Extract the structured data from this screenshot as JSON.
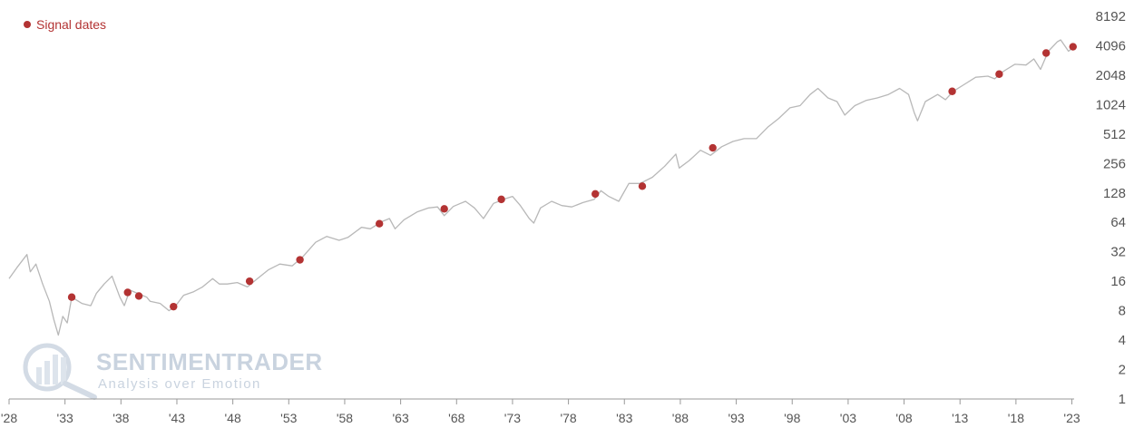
{
  "legend": {
    "label": "Signal dates",
    "color": "#b33333"
  },
  "watermark": {
    "name": "SENTIMENTRADER",
    "tagline": "Analysis over Emotion"
  },
  "chart_data": {
    "type": "line",
    "title": "",
    "xlabel": "",
    "ylabel": "",
    "yscale": "log2",
    "ylim": [
      1,
      8192
    ],
    "xlim": [
      1928,
      2023.2
    ],
    "grid": false,
    "legend_position": "top-left",
    "ytick_labels": [
      "1",
      "2",
      "4",
      "8",
      "16",
      "32",
      "64",
      "128",
      "256",
      "512",
      "1024",
      "2048",
      "4096",
      "8192"
    ],
    "xtick_labels": [
      {
        "year": 1928,
        "label": "'28"
      },
      {
        "year": 1933,
        "label": "'33"
      },
      {
        "year": 1938,
        "label": "'38"
      },
      {
        "year": 1943,
        "label": "'43"
      },
      {
        "year": 1948,
        "label": "'48"
      },
      {
        "year": 1953,
        "label": "'53"
      },
      {
        "year": 1958,
        "label": "'58"
      },
      {
        "year": 1963,
        "label": "'63"
      },
      {
        "year": 1968,
        "label": "'68"
      },
      {
        "year": 1973,
        "label": "'73"
      },
      {
        "year": 1978,
        "label": "'78"
      },
      {
        "year": 1983,
        "label": "'83"
      },
      {
        "year": 1988,
        "label": "'88"
      },
      {
        "year": 1993,
        "label": "'93"
      },
      {
        "year": 1998,
        "label": "'98"
      },
      {
        "year": 2003,
        "label": "'03"
      },
      {
        "year": 2008,
        "label": "'08"
      },
      {
        "year": 2013,
        "label": "'13"
      },
      {
        "year": 2018,
        "label": "'18"
      },
      {
        "year": 2023,
        "label": "'23"
      }
    ],
    "series": [
      {
        "color": "#b8b8b8",
        "points": [
          [
            1928.0,
            17
          ],
          [
            1928.7,
            22
          ],
          [
            1929.6,
            30
          ],
          [
            1929.9,
            20
          ],
          [
            1930.4,
            24
          ],
          [
            1931.0,
            15
          ],
          [
            1931.6,
            10
          ],
          [
            1932.0,
            6.5
          ],
          [
            1932.4,
            4.5
          ],
          [
            1932.8,
            7
          ],
          [
            1933.2,
            6
          ],
          [
            1933.6,
            11
          ],
          [
            1934.5,
            9.5
          ],
          [
            1935.3,
            9
          ],
          [
            1935.8,
            12
          ],
          [
            1936.5,
            15
          ],
          [
            1937.2,
            18
          ],
          [
            1937.9,
            11
          ],
          [
            1938.3,
            9
          ],
          [
            1938.8,
            13
          ],
          [
            1939.5,
            12
          ],
          [
            1940.3,
            11
          ],
          [
            1940.6,
            10
          ],
          [
            1941.5,
            9.5
          ],
          [
            1942.3,
            8
          ],
          [
            1942.9,
            9
          ],
          [
            1943.6,
            11.5
          ],
          [
            1944.5,
            12.5
          ],
          [
            1945.3,
            14
          ],
          [
            1946.2,
            17
          ],
          [
            1946.8,
            15
          ],
          [
            1947.5,
            15
          ],
          [
            1948.4,
            15.5
          ],
          [
            1949.3,
            14
          ],
          [
            1950.2,
            17
          ],
          [
            1951.2,
            21
          ],
          [
            1952.2,
            24
          ],
          [
            1953.3,
            23
          ],
          [
            1954.2,
            28
          ],
          [
            1955.4,
            40
          ],
          [
            1956.4,
            46
          ],
          [
            1957.5,
            42
          ],
          [
            1958.3,
            45
          ],
          [
            1959.5,
            57
          ],
          [
            1960.3,
            55
          ],
          [
            1961.3,
            65
          ],
          [
            1962.0,
            70
          ],
          [
            1962.5,
            55
          ],
          [
            1963.3,
            68
          ],
          [
            1964.5,
            82
          ],
          [
            1965.5,
            90
          ],
          [
            1966.3,
            92
          ],
          [
            1966.9,
            75
          ],
          [
            1967.7,
            93
          ],
          [
            1968.8,
            105
          ],
          [
            1969.6,
            90
          ],
          [
            1970.4,
            70
          ],
          [
            1971.3,
            100
          ],
          [
            1972.4,
            112
          ],
          [
            1973.0,
            118
          ],
          [
            1973.7,
            95
          ],
          [
            1974.5,
            70
          ],
          [
            1974.9,
            63
          ],
          [
            1975.5,
            90
          ],
          [
            1976.5,
            105
          ],
          [
            1977.4,
            95
          ],
          [
            1978.3,
            92
          ],
          [
            1979.3,
            102
          ],
          [
            1980.3,
            110
          ],
          [
            1980.9,
            135
          ],
          [
            1981.6,
            118
          ],
          [
            1982.5,
            105
          ],
          [
            1983.4,
            160
          ],
          [
            1984.4,
            160
          ],
          [
            1985.5,
            185
          ],
          [
            1986.6,
            240
          ],
          [
            1987.6,
            320
          ],
          [
            1987.9,
            230
          ],
          [
            1988.8,
            275
          ],
          [
            1989.8,
            350
          ],
          [
            1990.7,
            310
          ],
          [
            1991.7,
            380
          ],
          [
            1992.7,
            430
          ],
          [
            1993.7,
            460
          ],
          [
            1994.8,
            460
          ],
          [
            1995.8,
            600
          ],
          [
            1996.8,
            740
          ],
          [
            1997.8,
            950
          ],
          [
            1998.7,
            1000
          ],
          [
            1999.6,
            1300
          ],
          [
            2000.3,
            1500
          ],
          [
            2001.2,
            1200
          ],
          [
            2002.0,
            1100
          ],
          [
            2002.7,
            800
          ],
          [
            2003.6,
            1000
          ],
          [
            2004.6,
            1130
          ],
          [
            2005.6,
            1200
          ],
          [
            2006.6,
            1300
          ],
          [
            2007.6,
            1500
          ],
          [
            2008.4,
            1300
          ],
          [
            2008.9,
            850
          ],
          [
            2009.2,
            700
          ],
          [
            2009.9,
            1100
          ],
          [
            2011.0,
            1300
          ],
          [
            2011.7,
            1150
          ],
          [
            2012.4,
            1400
          ],
          [
            2013.4,
            1650
          ],
          [
            2014.4,
            1950
          ],
          [
            2015.5,
            2000
          ],
          [
            2016.1,
            1880
          ],
          [
            2016.9,
            2250
          ],
          [
            2017.9,
            2650
          ],
          [
            2018.9,
            2600
          ],
          [
            2019.6,
            3000
          ],
          [
            2020.2,
            2350
          ],
          [
            2020.9,
            3600
          ],
          [
            2021.7,
            4500
          ],
          [
            2022.0,
            4700
          ],
          [
            2022.7,
            3600
          ],
          [
            2023.2,
            4000
          ]
        ]
      }
    ],
    "signals": {
      "color": "#b33333",
      "points": [
        [
          1933.6,
          11
        ],
        [
          1938.6,
          12.3
        ],
        [
          1939.6,
          11.3
        ],
        [
          1942.7,
          8.8
        ],
        [
          1949.5,
          16
        ],
        [
          1954.0,
          26.5
        ],
        [
          1961.1,
          62
        ],
        [
          1966.9,
          88
        ],
        [
          1972.0,
          110
        ],
        [
          1980.4,
          125
        ],
        [
          1984.6,
          150
        ],
        [
          1990.9,
          370
        ],
        [
          2012.3,
          1400
        ],
        [
          2016.5,
          2100
        ],
        [
          2020.7,
          3450
        ],
        [
          2023.1,
          4000
        ]
      ]
    }
  }
}
